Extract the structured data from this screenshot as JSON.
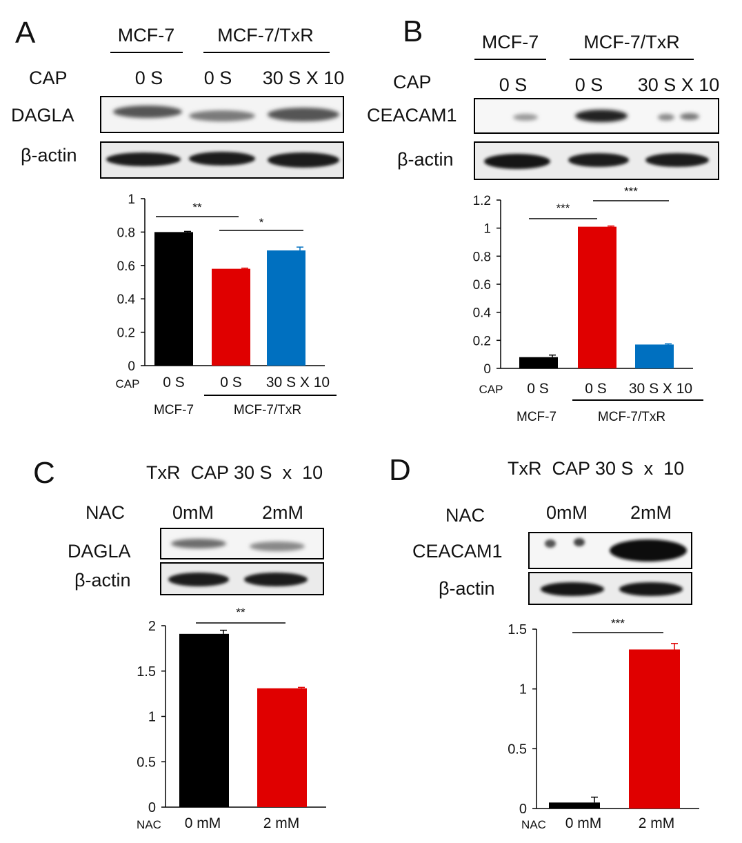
{
  "panels": {
    "A": {
      "letter": "A",
      "blot": {
        "group_left": "MCF-7",
        "group_right": "MCF-7/TxR",
        "treatment_label": "CAP",
        "lanes": [
          "0 S",
          "0 S",
          "30 S X 10"
        ],
        "rows": [
          "DAGLA",
          "β-actin"
        ]
      },
      "xaxis": {
        "treatment_label": "CAP",
        "lanes": [
          "0 S",
          "0 S",
          "30 S X 10"
        ],
        "group_left": "MCF-7",
        "group_right": "MCF-7/TxR"
      }
    },
    "B": {
      "letter": "B",
      "blot": {
        "group_left": "MCF-7",
        "group_right": "MCF-7/TxR",
        "treatment_label": "CAP",
        "lanes": [
          "0 S",
          "0 S",
          "30 S X 10"
        ],
        "rows": [
          "CEACAM1",
          "β-actin"
        ]
      },
      "xaxis": {
        "treatment_label": "CAP",
        "lanes": [
          "0 S",
          "0 S",
          "30 S X 10"
        ],
        "group_left": "MCF-7",
        "group_right": "MCF-7/TxR"
      }
    },
    "C": {
      "letter": "C",
      "header": "TxR  CAP 30 S  x  10",
      "blot": {
        "treatment_label": "NAC",
        "lanes": [
          "0mM",
          "2mM"
        ],
        "rows": [
          "DAGLA",
          "β-actin"
        ]
      },
      "xaxis": {
        "treatment_label": "NAC",
        "lanes": [
          "0 mM",
          "2 mM"
        ]
      }
    },
    "D": {
      "letter": "D",
      "header": "TxR  CAP 30 S  x  10",
      "blot": {
        "treatment_label": "NAC",
        "lanes": [
          "0mM",
          "2mM"
        ],
        "rows": [
          "CEACAM1",
          "β-actin"
        ]
      },
      "xaxis": {
        "treatment_label": "NAC",
        "lanes": [
          "0 mM",
          "2 mM"
        ]
      }
    }
  },
  "colors": {
    "black": "#000000",
    "red": "#e00000",
    "blue": "#0070c0"
  },
  "chart_data": [
    {
      "panel": "A",
      "type": "bar",
      "categories": [
        "0 S",
        "0 S",
        "30 S X 10"
      ],
      "values": [
        0.8,
        0.58,
        0.69
      ],
      "errors": [
        0.004,
        0.004,
        0.02
      ],
      "colors": [
        "#000000",
        "#e00000",
        "#0070c0"
      ],
      "ylim": [
        0,
        1
      ],
      "yticks": [
        "0",
        "0.2",
        "0.4",
        "0.6",
        "0.8",
        "1"
      ],
      "grid": false,
      "significance": [
        {
          "from": 0,
          "to": 1,
          "label": "**"
        },
        {
          "from": 1,
          "to": 2,
          "label": "*"
        }
      ]
    },
    {
      "panel": "B",
      "type": "bar",
      "categories": [
        "0 S",
        "0 S",
        "30 S X 10"
      ],
      "values": [
        0.08,
        1.01,
        0.17
      ],
      "errors": [
        0.015,
        0.005,
        0.005
      ],
      "colors": [
        "#000000",
        "#e00000",
        "#0070c0"
      ],
      "ylim": [
        0,
        1.2
      ],
      "yticks": [
        "0",
        "0.2",
        "0.4",
        "0.6",
        "0.8",
        "1",
        "1.2"
      ],
      "grid": false,
      "significance": [
        {
          "from": 0,
          "to": 1,
          "label": "***"
        },
        {
          "from": 1,
          "to": 2,
          "label": "***"
        }
      ]
    },
    {
      "panel": "C",
      "type": "bar",
      "categories": [
        "0 mM",
        "2 mM"
      ],
      "values": [
        1.91,
        1.31
      ],
      "errors": [
        0.04,
        0.01
      ],
      "colors": [
        "#000000",
        "#e00000"
      ],
      "ylim": [
        0,
        2
      ],
      "yticks": [
        "0",
        "0.5",
        "1",
        "1.5",
        "2"
      ],
      "grid": false,
      "significance": [
        {
          "from": 0,
          "to": 1,
          "label": "**"
        }
      ]
    },
    {
      "panel": "D",
      "type": "bar",
      "categories": [
        "0 mM",
        "2 mM"
      ],
      "values": [
        0.05,
        1.33
      ],
      "errors": [
        0.045,
        0.05
      ],
      "colors": [
        "#000000",
        "#e00000"
      ],
      "ylim": [
        0,
        1.5
      ],
      "yticks": [
        "0",
        "0.5",
        "1",
        "1.5"
      ],
      "grid": false,
      "significance": [
        {
          "from": 0,
          "to": 1,
          "label": "***"
        }
      ]
    }
  ]
}
